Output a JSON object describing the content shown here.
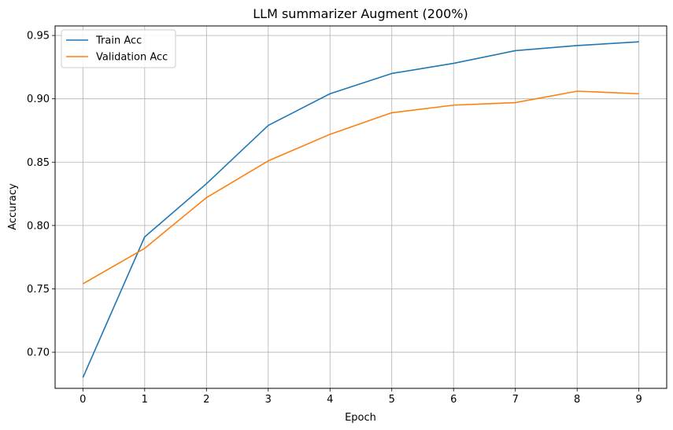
{
  "chart_data": {
    "type": "line",
    "title": "LLM summarizer Augment (200%)",
    "xlabel": "Epoch",
    "ylabel": "Accuracy",
    "x": [
      0,
      1,
      2,
      3,
      4,
      5,
      6,
      7,
      8,
      9
    ],
    "x_ticks": [
      "0",
      "1",
      "2",
      "3",
      "4",
      "5",
      "6",
      "7",
      "8",
      "9"
    ],
    "y_ticks": [
      "0.70",
      "0.75",
      "0.80",
      "0.85",
      "0.90",
      "0.95"
    ],
    "xlim": [
      -0.45,
      9.45
    ],
    "ylim": [
      0.6715,
      0.9575
    ],
    "grid": true,
    "legend_position": "upper-left",
    "series": [
      {
        "name": "Train Acc",
        "color": "#1f77b4",
        "values": [
          0.68,
          0.791,
          0.833,
          0.879,
          0.904,
          0.92,
          0.928,
          0.938,
          0.942,
          0.945
        ]
      },
      {
        "name": "Validation Acc",
        "color": "#ff7f0e",
        "values": [
          0.754,
          0.782,
          0.822,
          0.851,
          0.872,
          0.889,
          0.895,
          0.897,
          0.906,
          0.904
        ]
      }
    ]
  }
}
